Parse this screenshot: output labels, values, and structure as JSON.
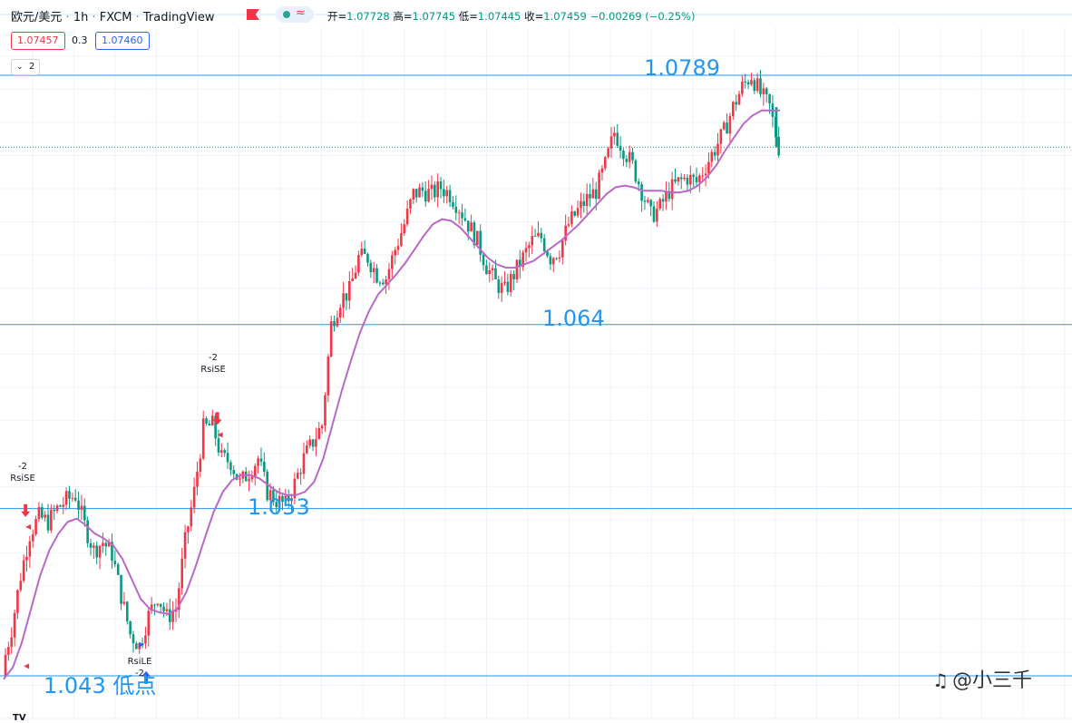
{
  "header": {
    "symbol": "欧元/美元",
    "interval": "1h",
    "exchange": "FXCM",
    "platform": "TradingView",
    "separator": "·",
    "indicator_wave": "≈",
    "ohlc": {
      "open_label": "开=",
      "open": "1.07728",
      "high_label": "高=",
      "high": "1.07745",
      "low_label": "低=",
      "low": "1.07445",
      "close_label": "收=",
      "close": "1.07459",
      "change": "−0.00269 (−0.25%)"
    }
  },
  "trade": {
    "sell_price": "1.07457",
    "spread": "0.3",
    "buy_price": "1.07460"
  },
  "indicators": {
    "collapsed_count": "2"
  },
  "annotations": {
    "level_1": "1.0789",
    "level_2": "1.064",
    "level_3": "1.053",
    "level_4": "1.043 低点"
  },
  "signals": [
    {
      "num": "-2",
      "name": "RsiSE"
    },
    {
      "num": "-2",
      "name": "RsiSE"
    },
    {
      "num": "-2",
      "name": "RsiLE"
    }
  ],
  "watermark": {
    "icon": "♫",
    "text": "@小三千"
  },
  "logo": "TV",
  "colors": {
    "up": "#f23645",
    "down": "#089981",
    "ma": "#ba68c8",
    "level_line": "#2196f3",
    "sell_arrow": "#f23645",
    "buy_arrow": "#2962ff"
  },
  "chart_data": {
    "type": "line",
    "title": "欧元/美元 · 1h · FXCM",
    "x_unit": "hourly bars",
    "y_unit": "price",
    "series": [
      {
        "name": "close",
        "x": [
          0,
          10,
          20,
          30,
          40,
          50,
          60,
          70,
          80,
          90,
          100,
          110,
          120,
          130,
          140,
          150,
          160,
          170,
          180,
          190,
          200,
          210,
          220,
          230,
          240,
          250,
          260,
          270,
          280,
          290,
          300,
          310,
          320,
          330,
          340,
          350,
          360,
          370,
          380,
          390,
          400,
          410,
          420,
          430,
          440,
          450,
          460,
          470,
          480,
          490,
          500,
          510,
          520,
          530,
          540,
          550,
          560,
          570,
          580,
          590,
          600,
          610,
          620,
          630,
          640,
          650,
          660,
          670,
          680,
          690,
          700,
          710,
          720,
          730,
          740,
          750,
          760,
          770,
          780,
          790,
          800,
          810,
          820,
          830,
          840,
          850
        ],
        "values": [
          1.0435,
          1.0458,
          1.049,
          1.0515,
          1.0525,
          1.0522,
          1.053,
          1.0535,
          1.0538,
          1.052,
          1.0505,
          1.051,
          1.0503,
          1.0478,
          1.0455,
          1.0448,
          1.0466,
          1.0478,
          1.0465,
          1.047,
          1.051,
          1.054,
          1.0578,
          1.058,
          1.056,
          1.0558,
          1.0545,
          1.0552,
          1.056,
          1.054,
          1.0535,
          1.0532,
          1.0545,
          1.056,
          1.057,
          1.058,
          1.064,
          1.0655,
          1.066,
          1.068,
          1.068,
          1.067,
          1.0668,
          1.0685,
          1.07,
          1.0718,
          1.072,
          1.0718,
          1.0722,
          1.0718,
          1.071,
          1.07,
          1.069,
          1.0675,
          1.0665,
          1.066,
          1.067,
          1.068,
          1.069,
          1.0692,
          1.068,
          1.0685,
          1.07,
          1.0708,
          1.0715,
          1.072,
          1.0735,
          1.0755,
          1.0745,
          1.0735,
          1.072,
          1.0705,
          1.071,
          1.072,
          1.0725,
          1.0728,
          1.0725,
          1.0735,
          1.0745,
          1.0755,
          1.077,
          1.0782,
          1.0789,
          1.0778,
          1.077,
          1.0746
        ]
      },
      {
        "name": "MA",
        "x": [
          0,
          10,
          20,
          30,
          40,
          50,
          60,
          70,
          80,
          90,
          100,
          110,
          120,
          130,
          140,
          150,
          160,
          170,
          180,
          190,
          200,
          210,
          220,
          230,
          240,
          250,
          260,
          270,
          280,
          290,
          300,
          310,
          320,
          330,
          340,
          350,
          360,
          370,
          380,
          390,
          400,
          410,
          420,
          430,
          440,
          450,
          460,
          470,
          480,
          490,
          500,
          510,
          520,
          530,
          540,
          550,
          560,
          570,
          580,
          590,
          600,
          610,
          620,
          630,
          640,
          650,
          660,
          670,
          680,
          690,
          700,
          710,
          720,
          730,
          740,
          750,
          760,
          770,
          780,
          790,
          800,
          810,
          820,
          830,
          840,
          850
        ],
        "values": [
          1.0428,
          1.0435,
          1.045,
          1.047,
          1.049,
          1.0505,
          1.0515,
          1.0522,
          1.0524,
          1.052,
          1.0515,
          1.0512,
          1.0508,
          1.05,
          1.0488,
          1.0476,
          1.047,
          1.0468,
          1.0467,
          1.047,
          1.048,
          1.0495,
          1.0512,
          1.0528,
          1.054,
          1.0547,
          1.055,
          1.055,
          1.0548,
          1.0544,
          1.054,
          1.0538,
          1.0538,
          1.054,
          1.0546,
          1.056,
          1.058,
          1.06,
          1.0618,
          1.0635,
          1.0648,
          1.0658,
          1.0664,
          1.067,
          1.0677,
          1.0685,
          1.0693,
          1.07,
          1.0703,
          1.0702,
          1.0698,
          1.0692,
          1.0686,
          1.068,
          1.0676,
          1.0674,
          1.0674,
          1.0676,
          1.0678,
          1.0682,
          1.0686,
          1.069,
          1.0695,
          1.07,
          1.0706,
          1.0712,
          1.0718,
          1.0722,
          1.0723,
          1.0722,
          1.072,
          1.072,
          1.072,
          1.0719,
          1.0719,
          1.072,
          1.0723,
          1.0728,
          1.0735,
          1.0744,
          1.0752,
          1.076,
          1.0765,
          1.0768,
          1.0768,
          1.0768
        ]
      }
    ],
    "levels": [
      1.0789,
      1.064,
      1.053,
      1.043
    ],
    "ylim": [
      1.0425,
      1.0795
    ],
    "xlim": [
      0,
      850
    ],
    "signal_points": [
      {
        "label": "RsiSE",
        "x": 20,
        "y": 1.0525
      },
      {
        "label": "RsiSE",
        "x": 230,
        "y": 1.058
      },
      {
        "label": "RsiLE",
        "x": 150,
        "y": 1.0448
      }
    ],
    "grid": true
  }
}
